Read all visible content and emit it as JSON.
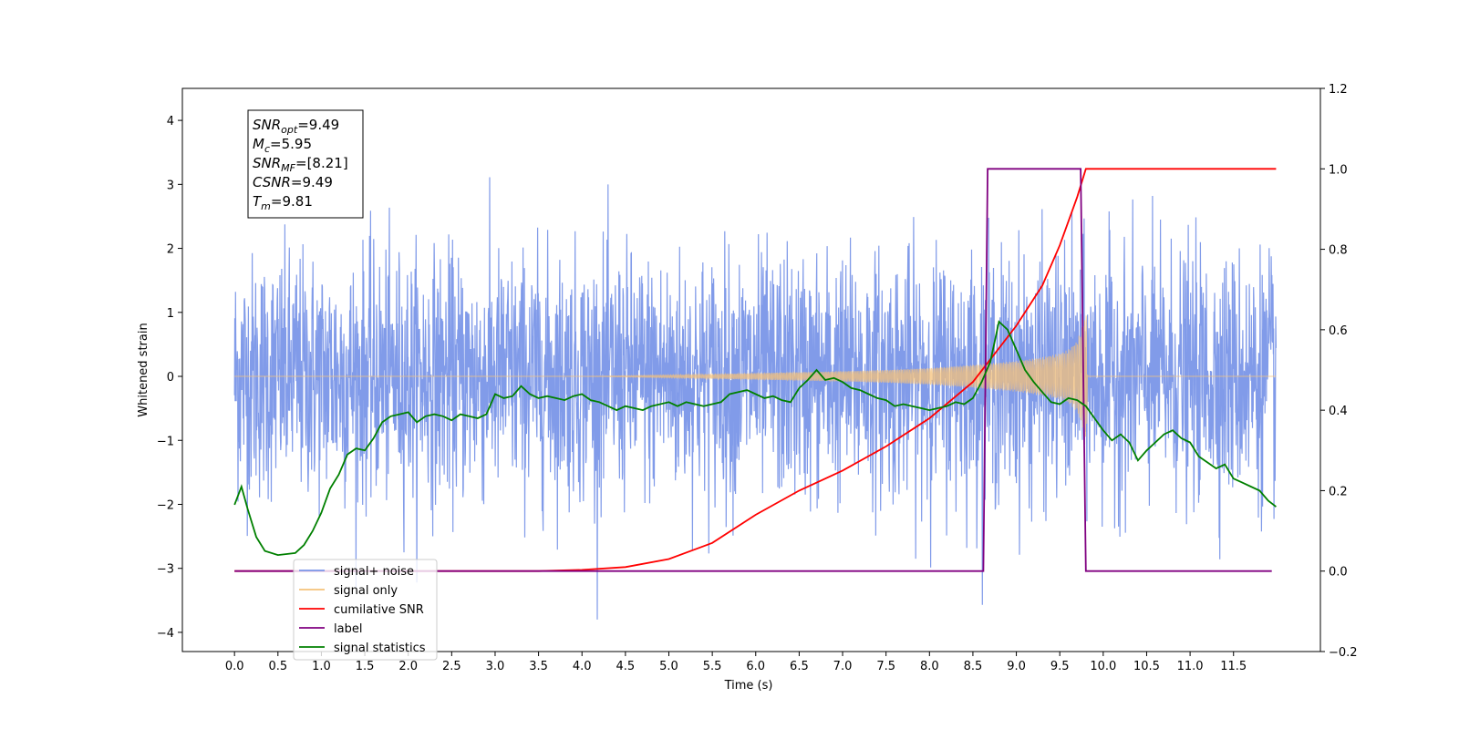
{
  "chart_data": {
    "type": "line",
    "xlabel": "Time (s)",
    "ylabel_left": "Whitened strain",
    "xlim": [
      -0.6,
      12.5
    ],
    "ylim_left": [
      -4.3,
      4.5
    ],
    "ylim_right": [
      -0.2,
      1.2
    ],
    "x_ticks": [
      0.0,
      0.5,
      1.0,
      1.5,
      2.0,
      2.5,
      3.0,
      3.5,
      4.0,
      4.5,
      5.0,
      5.5,
      6.0,
      6.5,
      7.0,
      7.5,
      8.0,
      8.5,
      9.0,
      9.5,
      10.0,
      10.5,
      11.0,
      11.5
    ],
    "x_tick_labels": [
      "0.0",
      "0.5",
      "1.0",
      "1.5",
      "2.0",
      "2.5",
      "3.0",
      "3.5",
      "4.0",
      "4.5",
      "5.0",
      "5.5",
      "6.0",
      "6.5",
      "7.0",
      "7.5",
      "8.0",
      "8.5",
      "9.0",
      "9.5",
      "10.0",
      "10.5",
      "11.0",
      "11.5"
    ],
    "y_left_ticks": [
      -4,
      -3,
      -2,
      -1,
      0,
      1,
      2,
      3,
      4
    ],
    "y_left_tick_labels": [
      "−4",
      "−3",
      "−2",
      "−1",
      "0",
      "1",
      "2",
      "3",
      "4"
    ],
    "y_right_ticks": [
      -0.2,
      0.0,
      0.2,
      0.4,
      0.6,
      0.8,
      1.0,
      1.2
    ],
    "y_right_tick_labels": [
      "−0.2",
      "0.0",
      "0.2",
      "0.4",
      "0.6",
      "0.8",
      "1.0",
      "1.2"
    ],
    "legend": {
      "placement": "lower-left",
      "entries": [
        {
          "label": "signal+ noise",
          "color": "#7a96e8"
        },
        {
          "label": "signal only",
          "color": "#f5c27a"
        },
        {
          "label": "cumilative SNR",
          "color": "#ff0000"
        },
        {
          "label": "label",
          "color": "#800080"
        },
        {
          "label": "signal statistics",
          "color": "#008000"
        }
      ]
    },
    "info_box": [
      {
        "sym": "SNR",
        "sub": "opt",
        "value": "=9.49"
      },
      {
        "sym": "M",
        "sub": "c",
        "value": "=5.95"
      },
      {
        "sym": "SNR",
        "sub": "MF",
        "value": "=[8.21]"
      },
      {
        "sym": "CSNR",
        "sub": "",
        "value": "=9.49"
      },
      {
        "sym": "T",
        "sub": "m",
        "value": "=9.81"
      }
    ],
    "series": [
      {
        "name": "signal+ noise",
        "axis": "left",
        "color": "#7a96e8",
        "noise_std": 0.95,
        "x_range": [
          0.0,
          11.99
        ]
      },
      {
        "name": "signal only",
        "axis": "left",
        "color": "#f5c27a",
        "envelope_x": [
          0.0,
          4.0,
          5.0,
          6.0,
          7.0,
          7.5,
          8.0,
          8.5,
          9.0,
          9.3,
          9.5,
          9.6,
          9.7,
          9.81,
          9.82,
          11.99
        ],
        "envelope_y": [
          0.0,
          0.0,
          0.02,
          0.05,
          0.08,
          0.1,
          0.13,
          0.18,
          0.24,
          0.3,
          0.36,
          0.42,
          0.55,
          1.0,
          0.0,
          0.0
        ]
      },
      {
        "name": "cumilative SNR",
        "axis": "right",
        "color": "#ff0000",
        "x": [
          0.0,
          3.5,
          4.0,
          4.5,
          5.0,
          5.5,
          6.0,
          6.5,
          7.0,
          7.5,
          8.0,
          8.5,
          9.0,
          9.3,
          9.5,
          9.7,
          9.8,
          9.81,
          11.99
        ],
        "y": [
          0.0,
          0.0,
          0.003,
          0.01,
          0.03,
          0.07,
          0.14,
          0.2,
          0.25,
          0.31,
          0.38,
          0.47,
          0.61,
          0.71,
          0.81,
          0.93,
          1.0,
          1.0,
          1.0
        ]
      },
      {
        "name": "label",
        "axis": "right",
        "color": "#800080",
        "x": [
          0.0,
          8.62,
          8.67,
          9.74,
          9.8,
          11.94
        ],
        "y": [
          0.0,
          0.0,
          1.0,
          1.0,
          0.0,
          0.0
        ]
      },
      {
        "name": "signal statistics",
        "axis": "right",
        "color": "#008000",
        "x": [
          0.0,
          0.08,
          0.15,
          0.25,
          0.35,
          0.5,
          0.7,
          0.8,
          0.9,
          1.0,
          1.1,
          1.2,
          1.3,
          1.4,
          1.5,
          1.6,
          1.7,
          1.8,
          1.9,
          2.0,
          2.1,
          2.2,
          2.3,
          2.4,
          2.5,
          2.6,
          2.7,
          2.8,
          2.9,
          3.0,
          3.1,
          3.2,
          3.3,
          3.4,
          3.5,
          3.6,
          3.7,
          3.8,
          3.9,
          4.0,
          4.1,
          4.2,
          4.3,
          4.4,
          4.5,
          4.6,
          4.7,
          4.8,
          4.9,
          5.0,
          5.1,
          5.2,
          5.3,
          5.4,
          5.5,
          5.6,
          5.7,
          5.8,
          5.9,
          6.0,
          6.1,
          6.2,
          6.3,
          6.4,
          6.5,
          6.6,
          6.7,
          6.8,
          6.9,
          7.0,
          7.1,
          7.2,
          7.3,
          7.4,
          7.5,
          7.6,
          7.7,
          7.8,
          7.9,
          8.0,
          8.1,
          8.2,
          8.3,
          8.4,
          8.5,
          8.6,
          8.7,
          8.8,
          8.9,
          9.0,
          9.1,
          9.2,
          9.3,
          9.4,
          9.5,
          9.6,
          9.7,
          9.8,
          9.9,
          10.0,
          10.1,
          10.2,
          10.3,
          10.4,
          10.5,
          10.6,
          10.7,
          10.8,
          10.9,
          11.0,
          11.1,
          11.2,
          11.3,
          11.4,
          11.5,
          11.6,
          11.7,
          11.8,
          11.9,
          11.99
        ],
        "y": [
          0.165,
          0.21,
          0.155,
          0.085,
          0.05,
          0.04,
          0.045,
          0.065,
          0.1,
          0.145,
          0.205,
          0.24,
          0.29,
          0.305,
          0.3,
          0.33,
          0.37,
          0.385,
          0.39,
          0.395,
          0.37,
          0.385,
          0.39,
          0.385,
          0.375,
          0.39,
          0.385,
          0.38,
          0.39,
          0.44,
          0.43,
          0.435,
          0.46,
          0.44,
          0.43,
          0.435,
          0.43,
          0.425,
          0.435,
          0.44,
          0.425,
          0.42,
          0.41,
          0.4,
          0.41,
          0.405,
          0.4,
          0.41,
          0.415,
          0.42,
          0.41,
          0.42,
          0.415,
          0.41,
          0.415,
          0.42,
          0.44,
          0.445,
          0.45,
          0.44,
          0.43,
          0.435,
          0.425,
          0.42,
          0.455,
          0.475,
          0.5,
          0.475,
          0.48,
          0.47,
          0.455,
          0.45,
          0.44,
          0.43,
          0.425,
          0.41,
          0.415,
          0.41,
          0.405,
          0.4,
          0.405,
          0.41,
          0.42,
          0.415,
          0.43,
          0.47,
          0.52,
          0.62,
          0.6,
          0.55,
          0.5,
          0.47,
          0.445,
          0.42,
          0.415,
          0.43,
          0.425,
          0.41,
          0.38,
          0.35,
          0.325,
          0.34,
          0.32,
          0.275,
          0.3,
          0.32,
          0.34,
          0.35,
          0.33,
          0.32,
          0.285,
          0.27,
          0.255,
          0.265,
          0.23,
          0.22,
          0.21,
          0.2,
          0.175,
          0.16
        ]
      }
    ]
  }
}
